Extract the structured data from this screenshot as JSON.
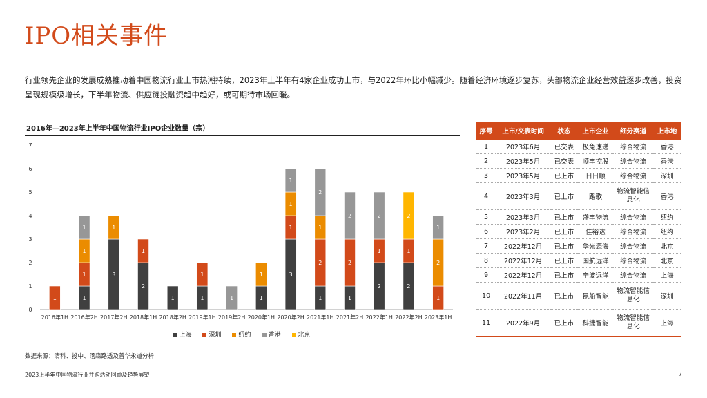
{
  "page": {
    "title": "IPO相关事件",
    "intro": "行业领先企业的发展成熟推动着中国物流行业上市热潮持续，2023年上半年有4家企业成功上市，与2022年环比小幅减少。随着经济环境逐步复苏，头部物流企业经营效益逐步改善，投资呈现规模级增长，下半年物流、供应链投融资趋中趋好，或可期待市场回暖。",
    "source": "数据来源：清科、投中、汤森路透及普华永道分析",
    "footer": "2023上半年中国物流行业并购活动回顾及趋势展望",
    "page_number": "7"
  },
  "chart_data": {
    "type": "bar",
    "stacked": true,
    "title": "2016年—2023年上半年中国物流行业IPO企业数量（宗）",
    "categories": [
      "2016年1H",
      "2016年2H",
      "2017年2H",
      "2018年1H",
      "2018年2H",
      "2019年1H",
      "2019年2H",
      "2020年1H",
      "2020年2H",
      "2021年1H",
      "2021年2H",
      "2022年1H",
      "2022年2H",
      "2023年1H"
    ],
    "series": [
      {
        "name": "上海",
        "color": "#404040",
        "values": [
          0,
          1,
          3,
          2,
          1,
          1,
          0,
          1,
          3,
          1,
          1,
          2,
          2,
          0
        ]
      },
      {
        "name": "深圳",
        "color": "#d24a1a",
        "values": [
          1,
          1,
          0,
          1,
          0,
          1,
          0,
          0,
          1,
          2,
          2,
          1,
          1,
          1
        ]
      },
      {
        "name": "纽约",
        "color": "#eb8c00",
        "values": [
          0,
          1,
          1,
          0,
          0,
          0,
          0,
          1,
          1,
          1,
          0,
          0,
          0,
          2
        ]
      },
      {
        "name": "香港",
        "color": "#979797",
        "values": [
          0,
          1,
          0,
          0,
          0,
          0,
          1,
          0,
          1,
          2,
          2,
          2,
          0,
          1
        ]
      },
      {
        "name": "北京",
        "color": "#ffb600",
        "values": [
          0,
          0,
          0,
          0,
          0,
          0,
          0,
          0,
          0,
          0,
          0,
          0,
          2,
          0
        ]
      }
    ],
    "ylim": [
      0,
      7
    ],
    "yticks": [
      0,
      1,
      2,
      3,
      4,
      5,
      6,
      7
    ],
    "legend_position": "bottom"
  },
  "table": {
    "headers": [
      "序号",
      "上市/交表时间",
      "状态",
      "上市企业",
      "细分赛道",
      "上市地"
    ],
    "rows": [
      {
        "no": "1",
        "date": "2023年6月",
        "status": "已交表",
        "company": "极兔速递",
        "segment": "综合物流",
        "place": "香港"
      },
      {
        "no": "2",
        "date": "2023年5月",
        "status": "已交表",
        "company": "顺丰控股",
        "segment": "综合物流",
        "place": "香港"
      },
      {
        "no": "3",
        "date": "2023年5月",
        "status": "已上市",
        "company": "日日顺",
        "segment": "综合物流",
        "place": "深圳"
      },
      {
        "no": "4",
        "date": "2023年3月",
        "status": "已上市",
        "company": "路歌",
        "segment": "物流智能信息化",
        "place": "香港"
      },
      {
        "no": "5",
        "date": "2023年3月",
        "status": "已上市",
        "company": "盛丰物流",
        "segment": "综合物流",
        "place": "纽约"
      },
      {
        "no": "6",
        "date": "2023年2月",
        "status": "已上市",
        "company": "佳裕达",
        "segment": "综合物流",
        "place": "纽约"
      },
      {
        "no": "7",
        "date": "2022年12月",
        "status": "已上市",
        "company": "华光源海",
        "segment": "综合物流",
        "place": "北京"
      },
      {
        "no": "8",
        "date": "2022年12月",
        "status": "已上市",
        "company": "国航远洋",
        "segment": "综合物流",
        "place": "北京"
      },
      {
        "no": "9",
        "date": "2022年12月",
        "status": "已上市",
        "company": "宁波远洋",
        "segment": "综合物流",
        "place": "上海"
      },
      {
        "no": "10",
        "date": "2022年11月",
        "status": "已上市",
        "company": "昆船智能",
        "segment": "物流智能信息化",
        "place": "深圳"
      },
      {
        "no": "11",
        "date": "2022年9月",
        "status": "已上市",
        "company": "科捷智能",
        "segment": "物流智能信息化",
        "place": "上海"
      }
    ]
  }
}
